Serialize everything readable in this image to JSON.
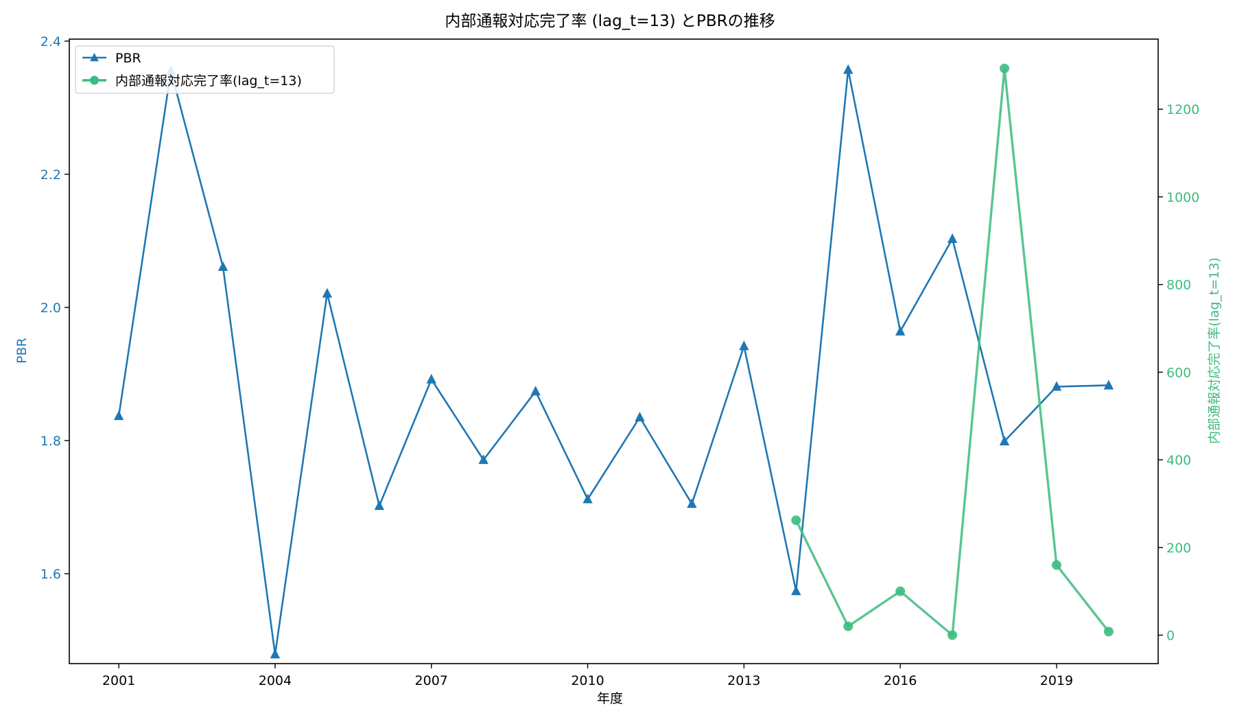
{
  "chart_data": {
    "type": "line",
    "title": "内部通報対応完了率 (lag_t=13) とPBRの推移",
    "xlabel": "年度",
    "ylabel_left": "PBR",
    "ylabel_right": "内部通報対応完了率(lag_t=13)",
    "x": [
      2001,
      2002,
      2003,
      2004,
      2005,
      2006,
      2007,
      2008,
      2009,
      2010,
      2011,
      2012,
      2013,
      2014,
      2015,
      2016,
      2017,
      2018,
      2019,
      2020
    ],
    "xlim": [
      2000.05,
      2020.95
    ],
    "x_ticks": [
      2001,
      2004,
      2007,
      2010,
      2013,
      2016,
      2019
    ],
    "x_tick_labels": [
      "2001",
      "2004",
      "2007",
      "2010",
      "2013",
      "2016",
      "2019"
    ],
    "ylim_left": [
      1.465,
      2.403
    ],
    "y_ticks_left": [
      1.6,
      1.8,
      2.0,
      2.2,
      2.4
    ],
    "y_tick_labels_left": [
      "1.6",
      "1.8",
      "2.0",
      "2.2",
      "2.4"
    ],
    "ylim_right": [
      -65,
      1360
    ],
    "y_ticks_right": [
      0,
      200,
      400,
      600,
      800,
      1000,
      1200
    ],
    "y_tick_labels_right": [
      "0",
      "200",
      "400",
      "600",
      "800",
      "1000",
      "1200"
    ],
    "series": [
      {
        "name": "PBR",
        "axis": "left",
        "marker": "triangle",
        "color": "#1f77b4",
        "x": [
          2001,
          2002,
          2003,
          2004,
          2005,
          2006,
          2007,
          2008,
          2009,
          2010,
          2011,
          2012,
          2013,
          2014,
          2015,
          2016,
          2017,
          2018,
          2019,
          2020
        ],
        "values": [
          1.837,
          2.355,
          2.061,
          1.479,
          2.021,
          1.702,
          1.892,
          1.771,
          1.874,
          1.712,
          1.835,
          1.705,
          1.942,
          1.574,
          2.357,
          1.964,
          2.103,
          1.799,
          1.881,
          1.883
        ]
      },
      {
        "name": "内部通報対応完了率(lag_t=13)",
        "axis": "right",
        "marker": "circle",
        "color": "#3dbb7f",
        "x": [
          2014,
          2015,
          2016,
          2017,
          2018,
          2019,
          2020
        ],
        "values": [
          262,
          20,
          100,
          0,
          1293,
          160,
          8
        ]
      }
    ],
    "legend": {
      "position": "top-left",
      "entries": [
        "PBR",
        "内部通報対応完了率(lag_t=13)"
      ]
    }
  }
}
